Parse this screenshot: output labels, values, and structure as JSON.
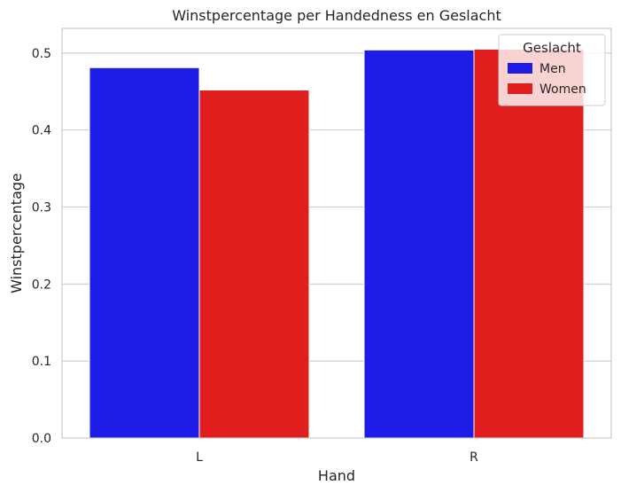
{
  "chart_data": {
    "type": "bar",
    "title": "Winstpercentage per Handedness en Geslacht",
    "xlabel": "Hand",
    "ylabel": "Winstpercentage",
    "categories": [
      "L",
      "R"
    ],
    "series": [
      {
        "name": "Men",
        "color": "#1c1ce6",
        "values": [
          0.481,
          0.504
        ]
      },
      {
        "name": "Women",
        "color": "#e01e1e",
        "values": [
          0.452,
          0.505
        ]
      }
    ],
    "ylim": [
      0,
      0.532
    ],
    "yticks": [
      {
        "value": 0.0,
        "label": "0.0"
      },
      {
        "value": 0.1,
        "label": "0.1"
      },
      {
        "value": 0.2,
        "label": "0.2"
      },
      {
        "value": 0.3,
        "label": "0.3"
      },
      {
        "value": 0.4,
        "label": "0.4"
      },
      {
        "value": 0.5,
        "label": "0.5"
      }
    ],
    "grid": "horizontal",
    "legend": {
      "title": "Geslacht",
      "placement": "top-right"
    }
  }
}
